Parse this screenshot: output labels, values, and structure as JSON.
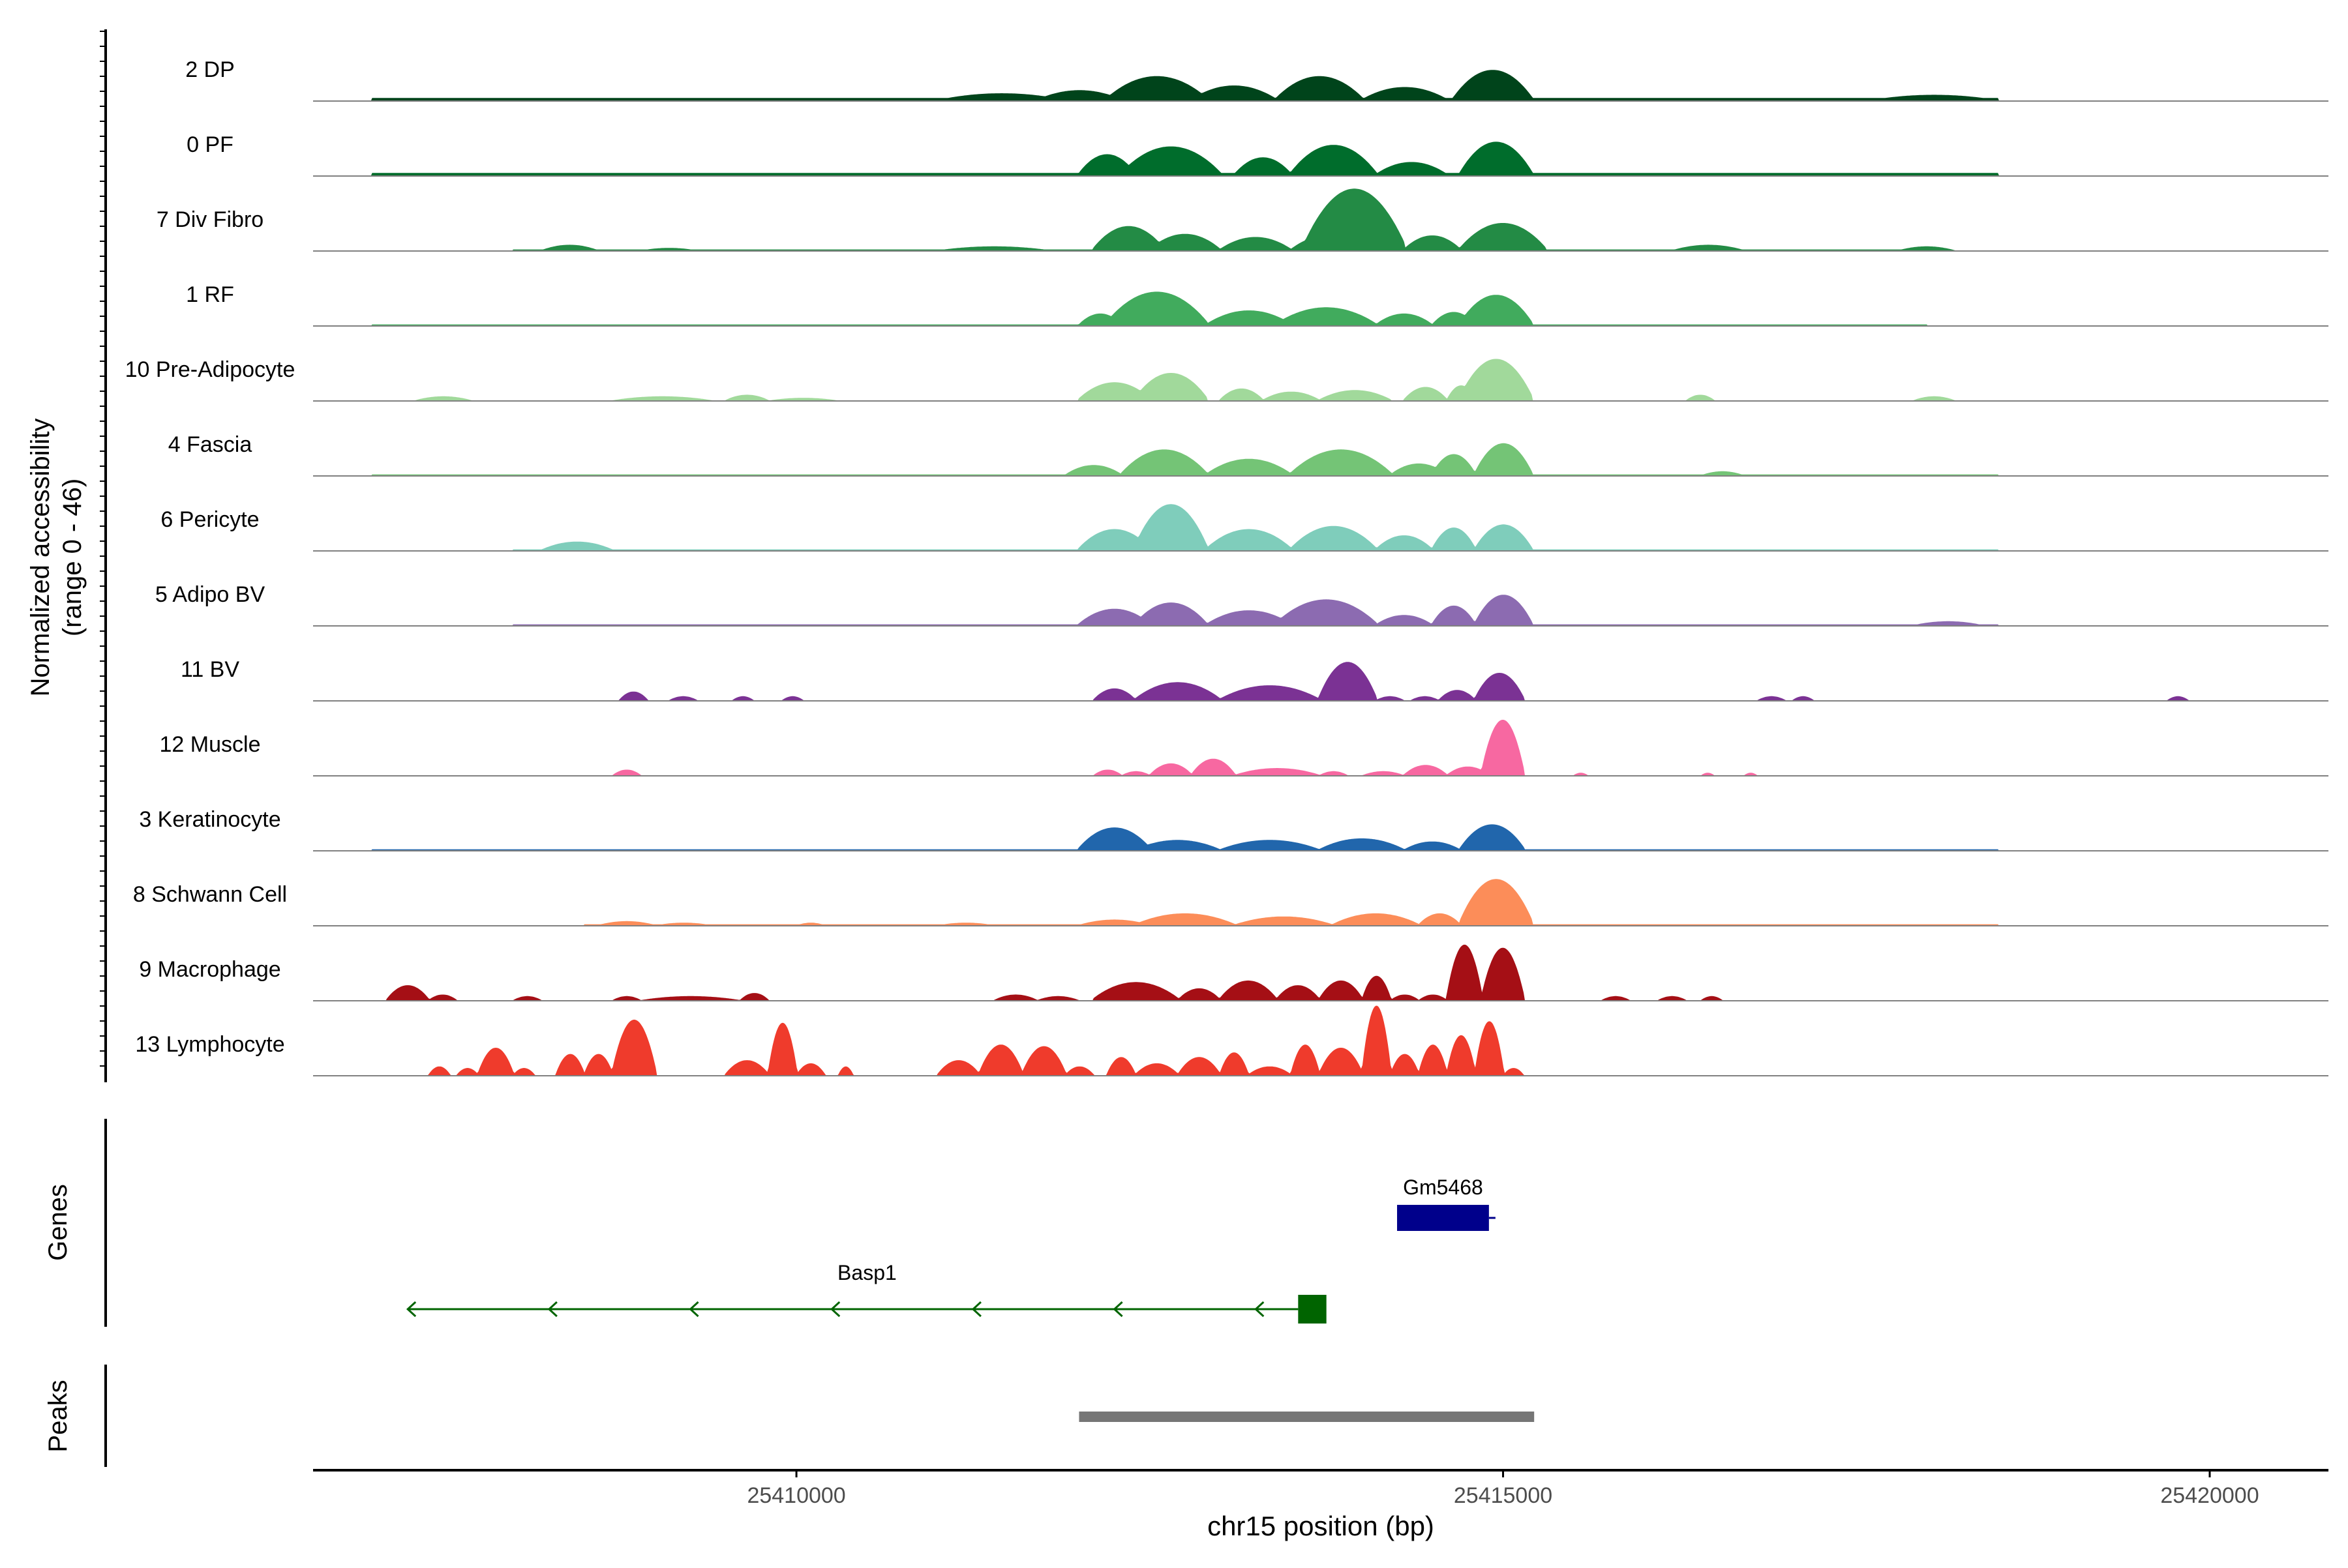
{
  "chart_data": {
    "type": "area",
    "title": "",
    "xlabel": "chr15 position (bp)",
    "ylabel": "Normalized accessibility",
    "ylabel_range": "(range 0 - 46)",
    "ylim": [
      0,
      46
    ],
    "xlim": [
      25406580,
      25420840
    ],
    "x_ticks": [
      25410000,
      25415000,
      25420000
    ],
    "x_tick_labels": [
      "25410000",
      "25415000",
      "25420000"
    ],
    "genes_label": "Genes",
    "peaks_label": "Peaks",
    "tracks": [
      {
        "name": "2 DP",
        "color": "#00441b",
        "bg": [
          [
            25407000,
            25418500,
            2
          ],
          [
            25414700,
            25415150,
            1
          ]
        ],
        "peaks": [
          [
            25411000,
            25411900,
            5
          ],
          [
            25411700,
            25412300,
            7
          ],
          [
            25412200,
            25412900,
            16
          ],
          [
            25412800,
            25413400,
            10
          ],
          [
            25413400,
            25414000,
            16
          ],
          [
            25414000,
            25414600,
            9
          ],
          [
            25414650,
            25415200,
            20
          ],
          [
            25417600,
            25418500,
            4
          ]
        ]
      },
      {
        "name": "0 PF",
        "color": "#006d2c",
        "bg": [
          [
            25407000,
            25418500,
            2
          ],
          [
            25414700,
            25415150,
            1
          ]
        ],
        "peaks": [
          [
            25408000,
            25409000,
            2
          ],
          [
            25412000,
            25412400,
            14
          ],
          [
            25412300,
            25413000,
            19
          ],
          [
            25413100,
            25413500,
            12
          ],
          [
            25413500,
            25414100,
            20
          ],
          [
            25414100,
            25414600,
            9
          ],
          [
            25414700,
            25415200,
            22
          ]
        ]
      },
      {
        "name": "7 Div Fibro",
        "color": "#238b45",
        "bg": [
          [
            25408000,
            25418000,
            1
          ]
        ],
        "peaks": [
          [
            25408200,
            25408600,
            4
          ],
          [
            25408900,
            25409300,
            2
          ],
          [
            25411000,
            25411800,
            3
          ],
          [
            25412100,
            25412600,
            16
          ],
          [
            25412500,
            25413000,
            11
          ],
          [
            25413000,
            25413500,
            9
          ],
          [
            25413500,
            25414000,
            10
          ],
          [
            25413600,
            25414300,
            40
          ],
          [
            25414300,
            25414700,
            10
          ],
          [
            25414700,
            25415300,
            18
          ],
          [
            25416200,
            25416700,
            4
          ],
          [
            25417800,
            25418200,
            3
          ]
        ]
      },
      {
        "name": "1 RF",
        "color": "#41ab5d",
        "bg": [
          [
            25407000,
            25418000,
            1
          ]
        ],
        "peaks": [
          [
            25412000,
            25412300,
            8
          ],
          [
            25412200,
            25412900,
            22
          ],
          [
            25412900,
            25413500,
            10
          ],
          [
            25413400,
            25414100,
            12
          ],
          [
            25414100,
            25414500,
            8
          ],
          [
            25414500,
            25414800,
            9
          ],
          [
            25414700,
            25415200,
            20
          ]
        ]
      },
      {
        "name": "10 Pre-Adipocyte",
        "color": "#a1d99b",
        "bg": [],
        "peaks": [
          [
            25407300,
            25407700,
            3
          ],
          [
            25408700,
            25409400,
            3
          ],
          [
            25409500,
            25409800,
            4
          ],
          [
            25409800,
            25410300,
            2
          ],
          [
            25412000,
            25412500,
            12
          ],
          [
            25412400,
            25412900,
            18
          ],
          [
            25413000,
            25413300,
            8
          ],
          [
            25413300,
            25413700,
            6
          ],
          [
            25413700,
            25414200,
            7
          ],
          [
            25414300,
            25414600,
            9
          ],
          [
            25414600,
            25414800,
            10
          ],
          [
            25414700,
            25415200,
            27
          ],
          [
            25416300,
            25416500,
            4
          ],
          [
            25417900,
            25418200,
            3
          ]
        ]
      },
      {
        "name": "4 Fascia",
        "color": "#74c476",
        "bg": [
          [
            25407000,
            25418500,
            1
          ]
        ],
        "peaks": [
          [
            25411900,
            25412300,
            7
          ],
          [
            25412300,
            25412900,
            17
          ],
          [
            25412900,
            25413500,
            11
          ],
          [
            25413500,
            25414200,
            17
          ],
          [
            25414200,
            25414600,
            8
          ],
          [
            25414500,
            25414800,
            14
          ],
          [
            25414800,
            25415200,
            21
          ],
          [
            25416400,
            25416700,
            3
          ]
        ]
      },
      {
        "name": "6 Pericyte",
        "color": "#7fcdbb",
        "bg": [
          [
            25408000,
            25418500,
            1
          ]
        ],
        "peaks": [
          [
            25408200,
            25408700,
            6
          ],
          [
            25412000,
            25412500,
            14
          ],
          [
            25412400,
            25412900,
            30
          ],
          [
            25412900,
            25413500,
            14
          ],
          [
            25413500,
            25414100,
            16
          ],
          [
            25414100,
            25414500,
            10
          ],
          [
            25414500,
            25414800,
            15
          ],
          [
            25414800,
            25415200,
            17
          ]
        ]
      },
      {
        "name": "5 Adipo BV",
        "color": "#8c6bb1",
        "bg": [
          [
            25408000,
            25418500,
            1
          ]
        ],
        "peaks": [
          [
            25412000,
            25412500,
            11
          ],
          [
            25412400,
            25412900,
            15
          ],
          [
            25412900,
            25413500,
            10
          ],
          [
            25413400,
            25414100,
            17
          ],
          [
            25414100,
            25414500,
            7
          ],
          [
            25414500,
            25414800,
            13
          ],
          [
            25414800,
            25415200,
            20
          ],
          [
            25417900,
            25418400,
            3
          ]
        ]
      },
      {
        "name": "11 BV",
        "color": "#7b3294",
        "bg": [],
        "peaks": [
          [
            25408750,
            25408950,
            6
          ],
          [
            25409100,
            25409300,
            3
          ],
          [
            25409550,
            25409700,
            3
          ],
          [
            25409900,
            25410050,
            3
          ],
          [
            25412100,
            25412400,
            8
          ],
          [
            25412400,
            25413000,
            12
          ],
          [
            25413000,
            25413700,
            10
          ],
          [
            25413700,
            25414100,
            25
          ],
          [
            25414100,
            25414300,
            3
          ],
          [
            25414350,
            25414550,
            3
          ],
          [
            25414550,
            25414800,
            7
          ],
          [
            25414800,
            25415150,
            18
          ],
          [
            25416800,
            25417000,
            3
          ],
          [
            25417050,
            25417200,
            3
          ],
          [
            25419700,
            25419850,
            3
          ]
        ]
      },
      {
        "name": "12 Muscle",
        "color": "#f768a1",
        "bg": [],
        "peaks": [
          [
            25408700,
            25408900,
            4
          ],
          [
            25412100,
            25412300,
            4
          ],
          [
            25412300,
            25412500,
            3
          ],
          [
            25412500,
            25412800,
            8
          ],
          [
            25412800,
            25413100,
            11
          ],
          [
            25413100,
            25413700,
            5
          ],
          [
            25413700,
            25413900,
            3
          ],
          [
            25414000,
            25414300,
            3
          ],
          [
            25414300,
            25414600,
            7
          ],
          [
            25414600,
            25414900,
            6
          ],
          [
            25414850,
            25415150,
            36
          ],
          [
            25415500,
            25415600,
            2
          ],
          [
            25416400,
            25416500,
            2
          ],
          [
            25416700,
            25416800,
            2
          ]
        ]
      },
      {
        "name": "3 Keratinocyte",
        "color": "#2166ac",
        "bg": [
          [
            25407000,
            25418500,
            1
          ]
        ],
        "peaks": [
          [
            25412000,
            25412500,
            15
          ],
          [
            25412400,
            25413000,
            7
          ],
          [
            25413000,
            25413700,
            7
          ],
          [
            25413700,
            25414300,
            8
          ],
          [
            25414300,
            25414700,
            6
          ],
          [
            25414700,
            25415150,
            17
          ]
        ]
      },
      {
        "name": "8 Schwann Cell",
        "color": "#fc8d59",
        "bg": [
          [
            25408500,
            25418500,
            1
          ]
        ],
        "peaks": [
          [
            25408600,
            25409000,
            3
          ],
          [
            25409000,
            25409400,
            2
          ],
          [
            25410000,
            25410200,
            2
          ],
          [
            25411000,
            25411400,
            2
          ],
          [
            25412000,
            25412500,
            4
          ],
          [
            25412400,
            25413100,
            8
          ],
          [
            25413100,
            25413800,
            6
          ],
          [
            25413800,
            25414400,
            8
          ],
          [
            25414400,
            25414700,
            8
          ],
          [
            25414700,
            25415200,
            30
          ]
        ]
      },
      {
        "name": "9 Macrophage",
        "color": "#a50f15",
        "bg": [],
        "peaks": [
          [
            25407100,
            25407400,
            10
          ],
          [
            25407400,
            25407600,
            4
          ],
          [
            25408000,
            25408200,
            3
          ],
          [
            25408700,
            25408900,
            3
          ],
          [
            25408900,
            25409600,
            3
          ],
          [
            25409600,
            25409800,
            5
          ],
          [
            25411400,
            25411700,
            4
          ],
          [
            25411700,
            25412000,
            3
          ],
          [
            25412100,
            25412700,
            12
          ],
          [
            25412700,
            25413000,
            8
          ],
          [
            25413000,
            25413400,
            13
          ],
          [
            25413400,
            25413700,
            10
          ],
          [
            25413700,
            25414000,
            13
          ],
          [
            25414000,
            25414200,
            16
          ],
          [
            25414200,
            25414400,
            4
          ],
          [
            25414400,
            25414600,
            4
          ],
          [
            25414600,
            25414850,
            36
          ],
          [
            25414850,
            25415150,
            34
          ],
          [
            25415700,
            25415900,
            3
          ],
          [
            25416100,
            25416300,
            3
          ],
          [
            25416400,
            25416550,
            3
          ]
        ]
      },
      {
        "name": "13 Lymphocyte",
        "color": "#ef3b2c",
        "bg": [],
        "peaks": [
          [
            25407400,
            25407550,
            6
          ],
          [
            25407600,
            25407750,
            5
          ],
          [
            25407750,
            25408000,
            18
          ],
          [
            25408000,
            25408150,
            5
          ],
          [
            25408300,
            25408500,
            14
          ],
          [
            25408500,
            25408700,
            14
          ],
          [
            25408700,
            25409000,
            36
          ],
          [
            25409500,
            25409800,
            10
          ],
          [
            25409800,
            25410000,
            34
          ],
          [
            25410000,
            25410200,
            8
          ],
          [
            25410300,
            25410400,
            6
          ],
          [
            25411000,
            25411300,
            10
          ],
          [
            25411300,
            25411600,
            20
          ],
          [
            25411600,
            25411900,
            19
          ],
          [
            25411900,
            25412100,
            6
          ],
          [
            25412200,
            25412400,
            12
          ],
          [
            25412400,
            25412700,
            8
          ],
          [
            25412700,
            25413000,
            12
          ],
          [
            25413000,
            25413200,
            15
          ],
          [
            25413200,
            25413500,
            6
          ],
          [
            25413500,
            25413700,
            20
          ],
          [
            25413700,
            25414000,
            18
          ],
          [
            25414000,
            25414200,
            45
          ],
          [
            25414200,
            25414400,
            14
          ],
          [
            25414400,
            25414600,
            20
          ],
          [
            25414600,
            25414800,
            26
          ],
          [
            25414800,
            25415000,
            35
          ],
          [
            25415000,
            25415150,
            5
          ]
        ]
      }
    ],
    "genes": [
      {
        "name": "Gm5468",
        "start": 25414250,
        "end": 25414900,
        "strand": "+",
        "color": "#00008b",
        "row": 0
      },
      {
        "name": "Basp1",
        "start": 25407250,
        "end": 25413750,
        "strand": "-",
        "color": "#006400",
        "row": 1,
        "exon": [
          25413550,
          25413750
        ]
      }
    ],
    "peaks": [
      {
        "start": 25412000,
        "end": 25415220,
        "color": "#767676"
      }
    ]
  }
}
